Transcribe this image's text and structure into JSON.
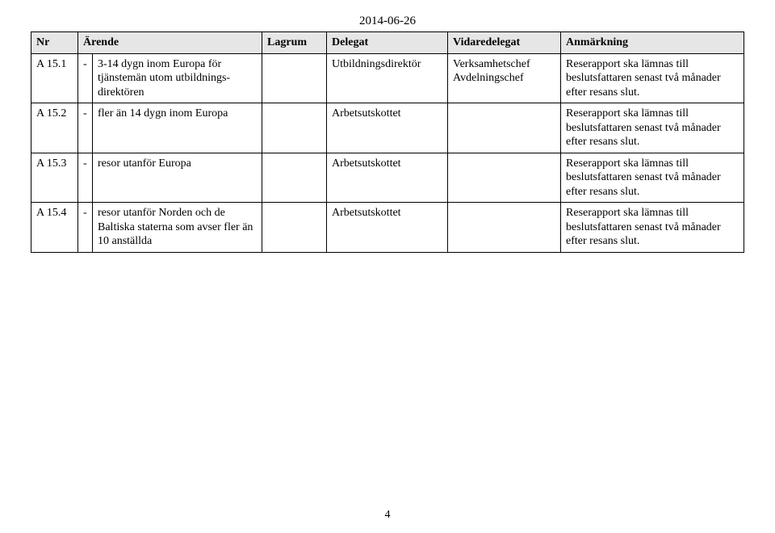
{
  "date": "2014-06-26",
  "headers": {
    "nr": "Nr",
    "arende": "Ärende",
    "lagrum": "Lagrum",
    "delegat": "Delegat",
    "vidaredelegat": "Vidaredelegat",
    "anmarkning": "Anmärkning"
  },
  "rows": [
    {
      "nr": "A 15.1",
      "dash": "-",
      "arende": "3-14 dygn inom Europa för tjänstemän utom utbildnings-direktören",
      "lagrum": "",
      "delegat": "Utbildningsdirektör",
      "vidaredelegat": "Verksamhetschef Avdelningschef",
      "anmarkning": "Reserapport ska lämnas till beslutsfattaren senast två månader efter resans slut."
    },
    {
      "nr": "A 15.2",
      "dash": "-",
      "arende": "fler än 14 dygn inom Europa",
      "lagrum": "",
      "delegat": "Arbetsutskottet",
      "vidaredelegat": "",
      "anmarkning": "Reserapport ska lämnas till beslutsfattaren senast två månader efter resans slut."
    },
    {
      "nr": "A 15.3",
      "dash": "-",
      "arende": "resor utanför Europa",
      "lagrum": "",
      "delegat": "Arbetsutskottet",
      "vidaredelegat": "",
      "anmarkning": "Reserapport ska lämnas till beslutsfattaren senast två månader efter resans slut."
    },
    {
      "nr": "A 15.4",
      "dash": "-",
      "arende": "resor utanför Norden och de Baltiska staterna som avser fler än 10 anställda",
      "lagrum": "",
      "delegat": "Arbetsutskottet",
      "vidaredelegat": "",
      "anmarkning": "Reserapport ska lämnas till beslutsfattaren senast två månader efter resans slut."
    }
  ],
  "page_number": "4"
}
